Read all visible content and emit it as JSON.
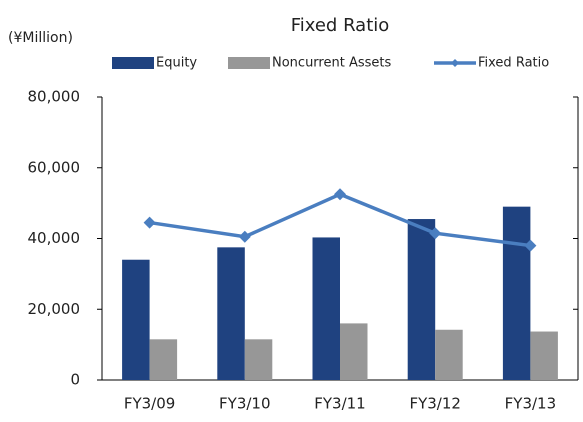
{
  "chart_data": {
    "type": "bar",
    "title": "Fixed Ratio",
    "y_label": "(¥Million)",
    "categories": [
      "FY3/09",
      "FY3/10",
      "FY3/11",
      "FY3/12",
      "FY3/13"
    ],
    "series": [
      {
        "name": "Equity",
        "color": "#1f4280",
        "values": [
          34000,
          37500,
          40300,
          45500,
          49000
        ]
      },
      {
        "name": "Noncurrent Assets",
        "color": "#979797",
        "values": [
          11500,
          11500,
          16000,
          14200,
          13700
        ]
      },
      {
        "name": "Fixed Ratio",
        "type": "line",
        "color": "#4a7ec0",
        "values": [
          44500,
          40500,
          52500,
          41500,
          38000
        ]
      }
    ],
    "ylim": [
      0,
      80000
    ],
    "yticks": [
      {
        "value": 0,
        "label": "0"
      },
      {
        "value": 20000,
        "label": "20,000"
      },
      {
        "value": 40000,
        "label": "40,000"
      },
      {
        "value": 60000,
        "label": "60,000"
      },
      {
        "value": 80000,
        "label": "80,000"
      }
    ]
  }
}
